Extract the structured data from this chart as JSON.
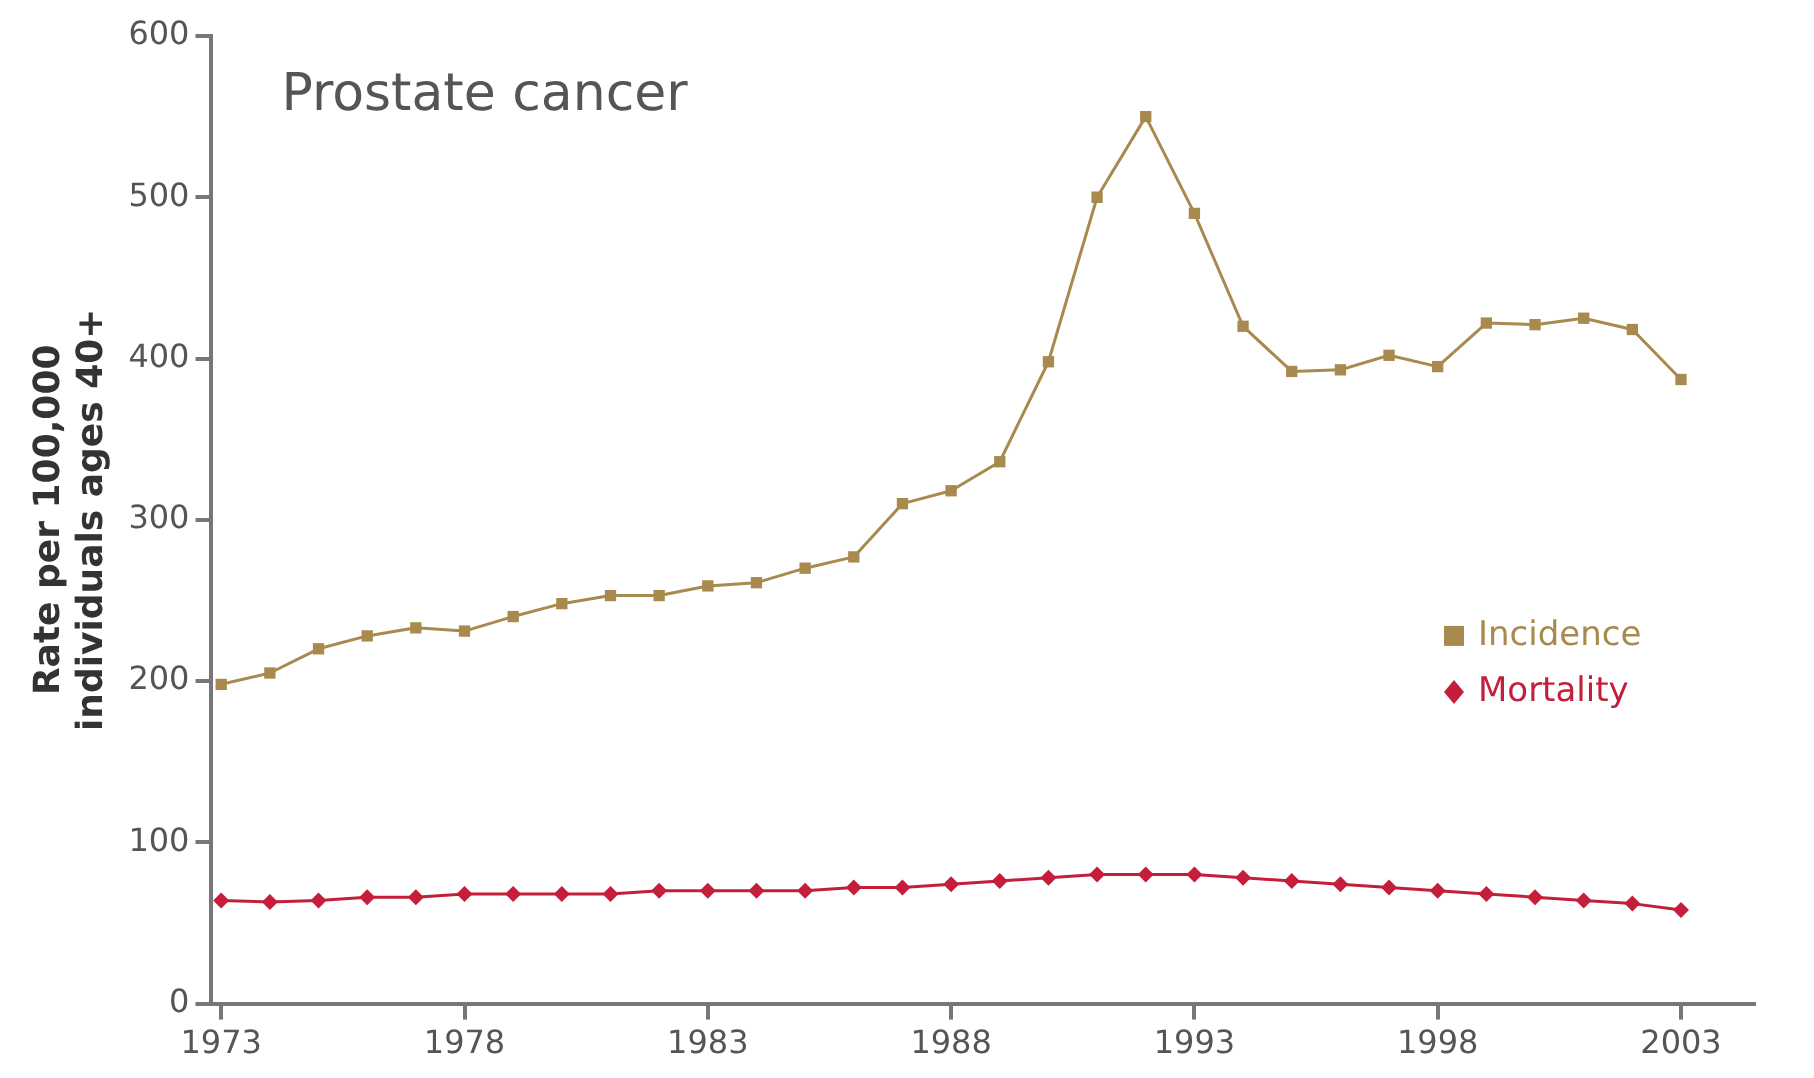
{
  "chart_data": {
    "type": "line",
    "title": "Prostate cancer",
    "ylabel": "Rate per 100,000\nindividuals ages 40+",
    "x": [
      1973,
      1974,
      1975,
      1976,
      1977,
      1978,
      1979,
      1980,
      1981,
      1982,
      1983,
      1984,
      1985,
      1986,
      1987,
      1988,
      1989,
      1990,
      1991,
      1992,
      1993,
      1994,
      1995,
      1996,
      1997,
      1998,
      1999,
      2000,
      2001,
      2002,
      2003
    ],
    "series": [
      {
        "name": "Incidence",
        "color": "#a88a4e",
        "marker": "square",
        "values": [
          198,
          205,
          220,
          228,
          233,
          231,
          240,
          248,
          253,
          253,
          259,
          261,
          270,
          277,
          310,
          318,
          336,
          398,
          500,
          550,
          490,
          420,
          392,
          393,
          402,
          395,
          422,
          421,
          425,
          418,
          387
        ]
      },
      {
        "name": "Mortality",
        "color": "#c41e3a",
        "marker": "diamond",
        "values": [
          64,
          63,
          64,
          66,
          66,
          68,
          68,
          68,
          68,
          70,
          70,
          70,
          70,
          72,
          72,
          74,
          76,
          78,
          80,
          80,
          80,
          78,
          76,
          74,
          72,
          70,
          68,
          66,
          64,
          62,
          58
        ]
      }
    ],
    "xlim": [
      1972.8,
      2004.5
    ],
    "xticks": [
      1973,
      1978,
      1983,
      1988,
      1993,
      1998,
      2003
    ],
    "ylim": [
      0,
      600
    ],
    "yticks": [
      0,
      100,
      200,
      300,
      400,
      500,
      600
    ],
    "grid": false,
    "legend": "right"
  }
}
